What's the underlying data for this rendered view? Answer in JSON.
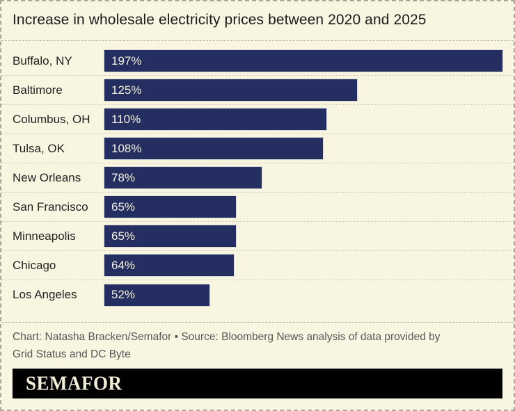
{
  "chart": {
    "title": "Increase in wholesale electricity prices between 2020 and 2025",
    "rows": [
      {
        "label": "Buffalo, NY",
        "value": 197,
        "value_label": "197%"
      },
      {
        "label": "Baltimore",
        "value": 125,
        "value_label": "125%"
      },
      {
        "label": "Columbus, OH",
        "value": 110,
        "value_label": "110%"
      },
      {
        "label": "Tulsa, OK",
        "value": 108,
        "value_label": "108%"
      },
      {
        "label": "New Orleans",
        "value": 78,
        "value_label": "78%"
      },
      {
        "label": "San Francisco",
        "value": 65,
        "value_label": "65%"
      },
      {
        "label": "Minneapolis",
        "value": 65,
        "value_label": "65%"
      },
      {
        "label": "Chicago",
        "value": 64,
        "value_label": "64%"
      },
      {
        "label": "Los Angeles",
        "value": 52,
        "value_label": "52%"
      }
    ]
  },
  "chart_data": {
    "type": "bar",
    "orientation": "horizontal",
    "title": "Increase in wholesale electricity prices between 2020 and 2025",
    "categories": [
      "Buffalo, NY",
      "Baltimore",
      "Columbus, OH",
      "Tulsa, OK",
      "New Orleans",
      "San Francisco",
      "Minneapolis",
      "Chicago",
      "Los Angeles"
    ],
    "values": [
      197,
      125,
      110,
      108,
      78,
      65,
      65,
      64,
      52
    ],
    "value_labels": [
      "197%",
      "125%",
      "110%",
      "108%",
      "78%",
      "65%",
      "65%",
      "64%",
      "52%"
    ],
    "xlabel": "",
    "ylabel": "",
    "xlim": [
      0,
      197
    ],
    "grid": false,
    "legend": false,
    "data_labels": "inside-bar-left",
    "unit": "%"
  },
  "footer": {
    "credit_line1": "Chart: Natasha Bracken/Semafor • Source: Bloomberg News analysis of data provided by",
    "credit_line2": "Grid Status and DC Byte",
    "logo": "SEMAFOR"
  },
  "colors": {
    "background": "#f8f5e1",
    "bar": "#252e60",
    "bar_value_text": "#f5f2df",
    "title_text": "#1b1b1b",
    "label_text": "#222222",
    "credit_text": "#575757",
    "separator_dashed": "#b2b0a1",
    "separator_dotted": "#cfcbb2",
    "logo_bar_background": "#000000",
    "logo_text": "#f3eed6"
  }
}
